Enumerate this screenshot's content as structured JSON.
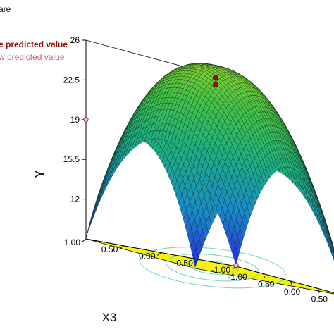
{
  "header": {
    "line1": "are",
    "line2": "e predicted value",
    "line3": "w predicted value"
  },
  "colors": {
    "surface_high": "#7fd33c",
    "surface_mid": "#1fae8a",
    "surface_low": "#2b2fd6",
    "floor": "#f3f20c",
    "contour": "#7ad7c8",
    "design_point_above": "#8b1010",
    "design_point_below": "#f1c4c4"
  },
  "chart_data": {
    "type": "surface3d",
    "z_label": "Y",
    "y_label": "X3",
    "z_ticks": [
      "26",
      "22.5",
      "19",
      "15.5",
      "12"
    ],
    "z_ticks_values": [
      26,
      22.5,
      19,
      15.5,
      12
    ],
    "y_ticks": [
      "1.00",
      "0.50",
      "0.00",
      "-0.50",
      "-1.00"
    ],
    "x_ticks": [
      "-1.00",
      "-0.50",
      "0.00",
      "0.50"
    ],
    "zlim": [
      8.5,
      26
    ],
    "xlim": [
      -1,
      1
    ],
    "ylim": [
      -1,
      1
    ],
    "surface_peak": 26.3,
    "surface_corner_min": 8.6,
    "design_points": [
      {
        "x": 0,
        "y": 0,
        "z": 25.2,
        "position": "above"
      },
      {
        "x": 0,
        "y": 0,
        "z": 24.6,
        "position": "above"
      },
      {
        "x": -1,
        "y": 1,
        "z": 19,
        "position": "below"
      },
      {
        "x": -1,
        "y": -1,
        "z": 8.6,
        "position": "below"
      }
    ]
  }
}
